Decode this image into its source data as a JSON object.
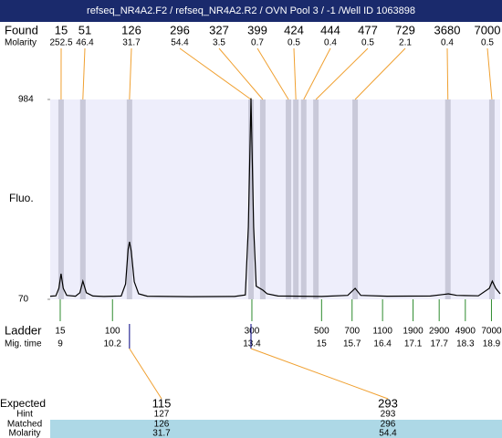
{
  "chart_data": {
    "type": "electropherogram",
    "title": "refseq_NR4A2.F2 / refseq_NR4A2.R2 / OVN Pool 3 / -1 /Well ID 1063898",
    "y_label": "Fluo.",
    "ylim": [
      70,
      984
    ],
    "yticks": [
      70,
      984
    ],
    "xlim": [
      8.77,
      19.1
    ],
    "found_label": "Found",
    "found_molarity_label": "Molarity",
    "found": {
      "sizes": [
        15,
        51,
        126,
        296,
        327,
        399,
        424,
        444,
        477,
        729,
        3680,
        7000
      ],
      "molarity": [
        252.5,
        46.4,
        31.7,
        54.4,
        3.5,
        0.7,
        0.5,
        0.4,
        0.5,
        2.1,
        0.4,
        0.5
      ],
      "times": [
        9.02,
        9.52,
        10.59,
        13.38,
        13.65,
        14.24,
        14.41,
        14.59,
        14.87,
        15.77,
        17.9,
        18.91
      ]
    },
    "trace": {
      "x": [
        8.77,
        8.9,
        8.97,
        9.02,
        9.07,
        9.15,
        9.35,
        9.45,
        9.52,
        9.6,
        9.75,
        10.0,
        10.4,
        10.5,
        10.56,
        10.59,
        10.63,
        10.7,
        10.8,
        11.0,
        12.0,
        13.0,
        13.25,
        13.32,
        13.38,
        13.44,
        13.5,
        13.65,
        13.75,
        14.0,
        15.0,
        15.6,
        15.77,
        15.9,
        16.5,
        17.5,
        17.8,
        17.91,
        18.1,
        18.6,
        18.85,
        18.92,
        19.0,
        19.1
      ],
      "values": [
        84,
        86,
        120,
        187,
        120,
        88,
        84,
        100,
        153,
        100,
        85,
        83,
        85,
        140,
        300,
        333,
        290,
        150,
        95,
        84,
        82,
        83,
        90,
        400,
        990,
        400,
        130,
        112,
        95,
        85,
        83,
        88,
        120,
        88,
        84,
        85,
        92,
        95,
        88,
        86,
        120,
        153,
        120,
        95
      ]
    },
    "ladder_label": "Ladder",
    "mig_time_label": "Mig. time",
    "ladder": {
      "sizes": [
        15,
        100,
        300,
        500,
        700,
        1100,
        1900,
        2900,
        4900,
        7000
      ],
      "times": [
        9,
        10.2,
        13.4,
        15,
        15.7,
        16.4,
        17.1,
        17.7,
        18.3,
        18.9
      ]
    },
    "table": {
      "row_labels": [
        "Expected",
        "Hint",
        "Matched",
        "Molarity"
      ],
      "expected": [
        115,
        293
      ],
      "hint": [
        127,
        293
      ],
      "matched": [
        126,
        296
      ],
      "molarity": [
        31.7,
        54.4
      ]
    }
  }
}
